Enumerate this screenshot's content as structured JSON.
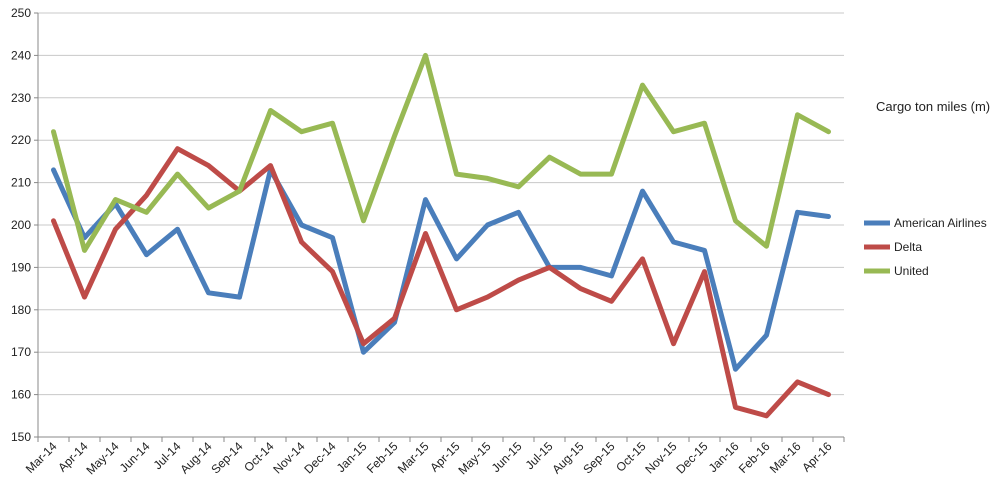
{
  "chart_data": {
    "type": "line",
    "title": "Cargo ton miles (m)",
    "xlabel": "",
    "ylabel": "",
    "ylim": [
      150,
      250
    ],
    "yticks": [
      150,
      160,
      170,
      180,
      190,
      200,
      210,
      220,
      230,
      240,
      250
    ],
    "grid": true,
    "legend_position": "right",
    "categories": [
      "Mar-14",
      "Apr-14",
      "May-14",
      "Jun-14",
      "Jul-14",
      "Aug-14",
      "Sep-14",
      "Oct-14",
      "Nov-14",
      "Dec-14",
      "Jan-15",
      "Feb-15",
      "Mar-15",
      "Apr-15",
      "May-15",
      "Jun-15",
      "Jul-15",
      "Aug-15",
      "Sep-15",
      "Oct-15",
      "Nov-15",
      "Dec-15",
      "Jan-16",
      "Feb-16",
      "Mar-16",
      "Apr-16"
    ],
    "series": [
      {
        "name": "American Airlines",
        "color": "#4a7ebb",
        "values": [
          213,
          197,
          205,
          193,
          199,
          184,
          183,
          213,
          200,
          197,
          170,
          177,
          206,
          192,
          200,
          203,
          190,
          190,
          188,
          208,
          196,
          194,
          166,
          174,
          203,
          202
        ]
      },
      {
        "name": "Delta",
        "color": "#be4b48",
        "values": [
          201,
          183,
          199,
          207,
          218,
          214,
          208,
          214,
          196,
          189,
          172,
          178,
          198,
          180,
          183,
          187,
          190,
          185,
          182,
          192,
          172,
          189,
          157,
          155,
          163,
          160
        ]
      },
      {
        "name": "United",
        "color": "#98b954",
        "values": [
          222,
          194,
          206,
          203,
          212,
          204,
          208,
          227,
          222,
          224,
          201,
          221,
          240,
          212,
          211,
          209,
          216,
          212,
          212,
          233,
          222,
          224,
          201,
          195,
          226,
          222
        ]
      }
    ]
  }
}
